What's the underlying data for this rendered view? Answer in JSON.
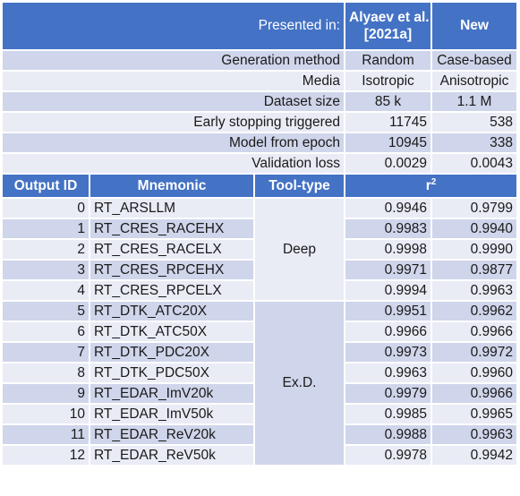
{
  "header": {
    "presented_in_label": "Presented in:",
    "col_a_title_line1": "Alyaev et al.",
    "col_a_title_line2": "[2021a]",
    "col_b_title": "New"
  },
  "meta_rows": [
    {
      "label": "Generation method",
      "a": "Random",
      "b": "Case-based"
    },
    {
      "label": "Media",
      "a": "Isotropic",
      "b": "Anisotropic"
    },
    {
      "label": "Dataset size",
      "a": "85 k",
      "b": "1.1 M"
    },
    {
      "label": "Early stopping triggered",
      "a": "11745",
      "b": "538"
    },
    {
      "label": "Model from epoch",
      "a": "10945",
      "b": "338"
    },
    {
      "label": "Validation loss",
      "a": "0.0029",
      "b": "0.0043"
    }
  ],
  "table_header": {
    "output_id": "Output ID",
    "mnemonic": "Mnemonic",
    "tool_type": "Tool-type",
    "r2_base": "r",
    "r2_sup": "2"
  },
  "tool_groups": {
    "deep": "Deep",
    "exd": "Ex.D."
  },
  "rows": [
    {
      "id": "0",
      "mnemonic": "RT_ARSLLM",
      "a": "0.9946",
      "b": "0.9799"
    },
    {
      "id": "1",
      "mnemonic": "RT_CRES_RACEHX",
      "a": "0.9983",
      "b": "0.9940"
    },
    {
      "id": "2",
      "mnemonic": "RT_CRES_RACELX",
      "a": "0.9998",
      "b": "0.9990"
    },
    {
      "id": "3",
      "mnemonic": "RT_CRES_RPCEHX",
      "a": "0.9971",
      "b": "0.9877"
    },
    {
      "id": "4",
      "mnemonic": "RT_CRES_RPCELX",
      "a": "0.9994",
      "b": "0.9963"
    },
    {
      "id": "5",
      "mnemonic": "RT_DTK_ATC20X",
      "a": "0.9951",
      "b": "0.9962"
    },
    {
      "id": "6",
      "mnemonic": "RT_DTK_ATC50X",
      "a": "0.9966",
      "b": "0.9966"
    },
    {
      "id": "7",
      "mnemonic": "RT_DTK_PDC20X",
      "a": "0.9973",
      "b": "0.9972"
    },
    {
      "id": "8",
      "mnemonic": "RT_DTK_PDC50X",
      "a": "0.9963",
      "b": "0.9960"
    },
    {
      "id": "9",
      "mnemonic": "RT_EDAR_ImV20k",
      "a": "0.9979",
      "b": "0.9966"
    },
    {
      "id": "10",
      "mnemonic": "RT_EDAR_ImV50k",
      "a": "0.9985",
      "b": "0.9965"
    },
    {
      "id": "11",
      "mnemonic": "RT_EDAR_ReV20k",
      "a": "0.9988",
      "b": "0.9963"
    },
    {
      "id": "12",
      "mnemonic": "RT_EDAR_ReV50k",
      "a": "0.9978",
      "b": "0.9942"
    }
  ],
  "colors": {
    "header_blue": "#4472c4",
    "band_dark": "#cfd5ea",
    "band_light": "#e9ebf5"
  }
}
